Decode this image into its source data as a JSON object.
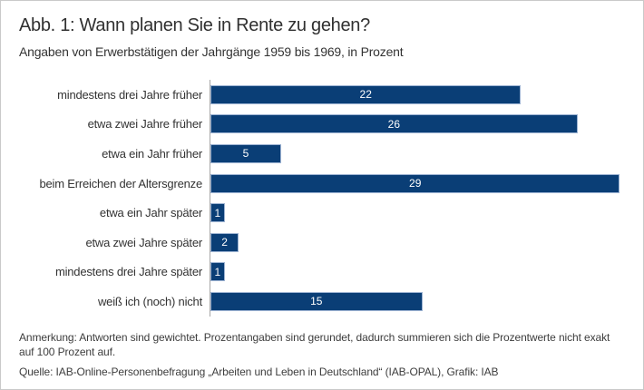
{
  "figure": {
    "title": "Abb. 1: Wann planen Sie in Rente zu gehen?",
    "subtitle": "Angaben von Erwerbstätigen der Jahrgänge 1959 bis 1969, in Prozent",
    "note": "Anmerkung: Antworten sind gewichtet. Prozentangaben sind gerundet, dadurch summieren sich die Prozentwerte nicht exakt auf 100 Prozent auf.",
    "source": "Quelle: IAB-Online-Personenbefragung „Arbeiten und Leben in Deutschland“ (IAB-OPAL), Grafik: IAB"
  },
  "chart_data": {
    "type": "bar",
    "orientation": "horizontal",
    "title": "Abb. 1: Wann planen Sie in Rente zu gehen?",
    "subtitle": "Angaben von Erwerbstätigen der Jahrgänge 1959 bis 1969, in Prozent",
    "unit": "Prozent",
    "categories": [
      "mindestens drei Jahre früher",
      "etwa zwei Jahre früher",
      "etwa ein Jahr früher",
      "beim Erreichen der Altersgrenze",
      "etwa ein Jahr später",
      "etwa zwei Jahre später",
      "mindestens drei Jahre später",
      "weiß ich (noch) nicht"
    ],
    "values": [
      22,
      26,
      5,
      29,
      1,
      2,
      1,
      15
    ],
    "value_labels": [
      "22",
      "26",
      "5",
      "29",
      "1",
      "2",
      "1",
      "15"
    ],
    "xlabel": "",
    "ylabel": "",
    "xlim": [
      0,
      30
    ],
    "grid": false,
    "legend": false,
    "value_labels_inside_bars": true
  },
  "colors": {
    "bar_fill": "#0a3e76",
    "bar_border": "#9db3d2",
    "value_label": "#ffffff",
    "axis_line": "#a6a6a6",
    "figure_border": "#c9c9c9",
    "text": "#333333"
  }
}
